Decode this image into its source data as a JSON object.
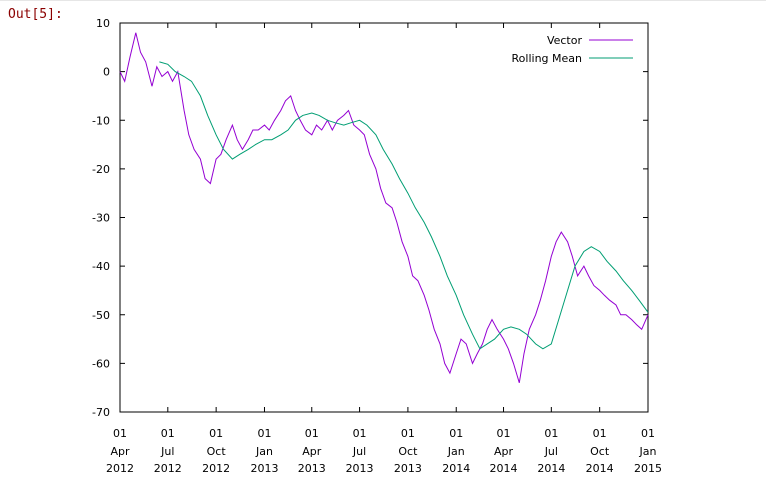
{
  "cell": {
    "prompt": "Out[5]:"
  },
  "chart_data": {
    "type": "line",
    "title": "",
    "xlabel": "",
    "ylabel": "",
    "ylim": [
      -70,
      10
    ],
    "y_ticks": [
      10,
      0,
      -10,
      -20,
      -30,
      -40,
      -50,
      -60,
      -70
    ],
    "x_ticks": [
      {
        "day": "01",
        "month": "Apr",
        "year": "2012"
      },
      {
        "day": "01",
        "month": "Jul",
        "year": "2012"
      },
      {
        "day": "01",
        "month": "Oct",
        "year": "2012"
      },
      {
        "day": "01",
        "month": "Jan",
        "year": "2013"
      },
      {
        "day": "01",
        "month": "Apr",
        "year": "2013"
      },
      {
        "day": "01",
        "month": "Jul",
        "year": "2013"
      },
      {
        "day": "01",
        "month": "Oct",
        "year": "2013"
      },
      {
        "day": "01",
        "month": "Jan",
        "year": "2014"
      },
      {
        "day": "01",
        "month": "Apr",
        "year": "2014"
      },
      {
        "day": "01",
        "month": "Jul",
        "year": "2014"
      },
      {
        "day": "01",
        "month": "Oct",
        "year": "2014"
      },
      {
        "day": "01",
        "month": "Jan",
        "year": "2015"
      }
    ],
    "legend_position": "top-right",
    "grid": false,
    "series": [
      {
        "name": "Vector",
        "color": "#9400d3",
        "x": [
          "2012-04-01",
          "2012-04-10",
          "2012-04-20",
          "2012-05-01",
          "2012-05-10",
          "2012-05-20",
          "2012-06-01",
          "2012-06-10",
          "2012-06-20",
          "2012-07-01",
          "2012-07-10",
          "2012-07-20",
          "2012-08-01",
          "2012-08-10",
          "2012-08-20",
          "2012-09-01",
          "2012-09-10",
          "2012-09-20",
          "2012-10-01",
          "2012-10-10",
          "2012-10-20",
          "2012-11-01",
          "2012-11-10",
          "2012-11-20",
          "2012-12-01",
          "2012-12-10",
          "2012-12-20",
          "2013-01-01",
          "2013-01-10",
          "2013-01-20",
          "2013-02-01",
          "2013-02-10",
          "2013-02-20",
          "2013-03-01",
          "2013-03-10",
          "2013-03-20",
          "2013-04-01",
          "2013-04-10",
          "2013-04-20",
          "2013-05-01",
          "2013-05-10",
          "2013-05-20",
          "2013-06-01",
          "2013-06-10",
          "2013-06-20",
          "2013-07-01",
          "2013-07-10",
          "2013-07-20",
          "2013-08-01",
          "2013-08-10",
          "2013-08-20",
          "2013-09-01",
          "2013-09-10",
          "2013-09-20",
          "2013-10-01",
          "2013-10-10",
          "2013-10-20",
          "2013-11-01",
          "2013-11-10",
          "2013-11-20",
          "2013-12-01",
          "2013-12-10",
          "2013-12-20",
          "2014-01-01",
          "2014-01-10",
          "2014-01-20",
          "2014-02-01",
          "2014-02-10",
          "2014-02-20",
          "2014-03-01",
          "2014-03-10",
          "2014-03-20",
          "2014-04-01",
          "2014-04-10",
          "2014-04-20",
          "2014-05-01",
          "2014-05-10",
          "2014-05-20",
          "2014-06-01",
          "2014-06-10",
          "2014-06-20",
          "2014-07-01",
          "2014-07-10",
          "2014-07-20",
          "2014-08-01",
          "2014-08-10",
          "2014-08-20",
          "2014-09-01",
          "2014-09-10",
          "2014-09-20",
          "2014-10-01",
          "2014-10-10",
          "2014-10-20",
          "2014-11-01",
          "2014-11-10",
          "2014-11-20",
          "2014-12-01",
          "2014-12-10",
          "2014-12-20",
          "2015-01-01"
        ],
        "values": [
          0,
          -2,
          3,
          8,
          4,
          2,
          -3,
          1,
          -1,
          0,
          -2,
          0,
          -8,
          -13,
          -16,
          -18,
          -22,
          -23,
          -18,
          -17,
          -14,
          -11,
          -14,
          -16,
          -14,
          -12,
          -12,
          -11,
          -12,
          -10,
          -8,
          -6,
          -5,
          -8,
          -10,
          -12,
          -13,
          -11,
          -12,
          -10,
          -12,
          -10,
          -9,
          -8,
          -11,
          -12,
          -13,
          -17,
          -20,
          -24,
          -27,
          -28,
          -31,
          -35,
          -38,
          -42,
          -43,
          -46,
          -49,
          -53,
          -56,
          -60,
          -62,
          -58,
          -55,
          -56,
          -60,
          -58,
          -56,
          -53,
          -51,
          -53,
          -55,
          -57,
          -60,
          -64,
          -58,
          -53,
          -50,
          -47,
          -43,
          -38,
          -35,
          -33,
          -35,
          -38,
          -42,
          -40,
          -42,
          -44,
          -45,
          -46,
          -47,
          -48,
          -50,
          -50,
          -51,
          -52,
          -53,
          -50
        ]
      },
      {
        "name": "Rolling Mean",
        "color": "#009e73",
        "x": [
          "2012-06-15",
          "2012-07-01",
          "2012-07-15",
          "2012-08-01",
          "2012-08-15",
          "2012-09-01",
          "2012-09-15",
          "2012-10-01",
          "2012-10-15",
          "2012-11-01",
          "2012-11-15",
          "2012-12-01",
          "2012-12-15",
          "2013-01-01",
          "2013-01-15",
          "2013-02-01",
          "2013-02-15",
          "2013-03-01",
          "2013-03-15",
          "2013-04-01",
          "2013-04-15",
          "2013-05-01",
          "2013-05-15",
          "2013-06-01",
          "2013-06-15",
          "2013-07-01",
          "2013-07-15",
          "2013-08-01",
          "2013-08-15",
          "2013-09-01",
          "2013-09-15",
          "2013-10-01",
          "2013-10-15",
          "2013-11-01",
          "2013-11-15",
          "2013-12-01",
          "2013-12-15",
          "2014-01-01",
          "2014-01-15",
          "2014-02-01",
          "2014-02-15",
          "2014-03-01",
          "2014-03-15",
          "2014-04-01",
          "2014-04-15",
          "2014-05-01",
          "2014-05-15",
          "2014-06-01",
          "2014-06-15",
          "2014-07-01",
          "2014-07-15",
          "2014-08-01",
          "2014-08-15",
          "2014-09-01",
          "2014-09-15",
          "2014-10-01",
          "2014-10-15",
          "2014-11-01",
          "2014-11-15",
          "2014-12-01",
          "2014-12-15",
          "2015-01-01"
        ],
        "values": [
          2,
          1.5,
          0,
          -1,
          -2,
          -5,
          -9,
          -13,
          -16,
          -18,
          -17,
          -16,
          -15,
          -14,
          -14,
          -13,
          -12,
          -10,
          -9,
          -8.5,
          -9,
          -10,
          -10.5,
          -11,
          -10.5,
          -10,
          -11,
          -13,
          -16,
          -19,
          -22,
          -25,
          -28,
          -31,
          -34,
          -38,
          -42,
          -46,
          -50,
          -54,
          -57,
          -56,
          -55,
          -53,
          -52.5,
          -53,
          -54,
          -56,
          -57,
          -56,
          -51,
          -45,
          -40,
          -37,
          -36,
          -37,
          -39,
          -41,
          -43,
          -45,
          -47,
          -49.5
        ]
      }
    ]
  }
}
